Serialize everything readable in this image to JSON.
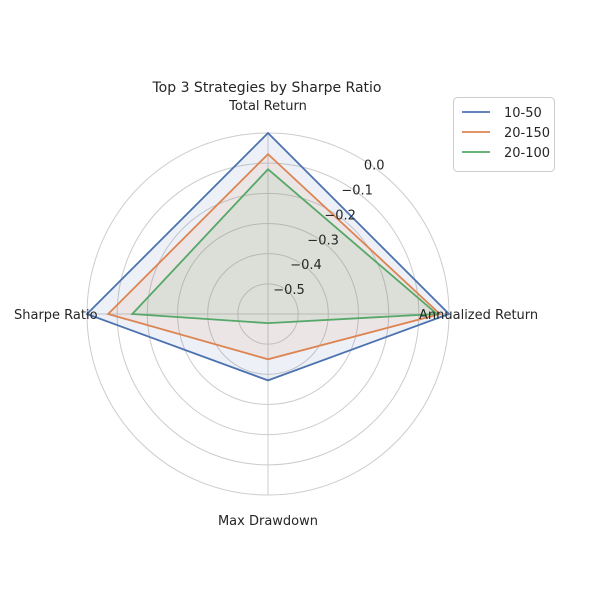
{
  "chart_data": {
    "type": "radar",
    "title": "Top 3 Strategies by Sharpe Ratio",
    "axes": [
      "Total Return",
      "Annualized Return",
      "Max Drawdown",
      "Sharpe Ratio"
    ],
    "r_ticks": [
      0.0,
      -0.1,
      -0.2,
      -0.3,
      -0.4,
      -0.5
    ],
    "r_tick_labels": [
      "0.0",
      "−0.1",
      "−0.2",
      "−0.3",
      "−0.4",
      "−0.5"
    ],
    "r_range": [
      -0.6,
      0.0
    ],
    "grid": true,
    "legend_position": "top-right",
    "series": [
      {
        "name": "10-50",
        "color": "#4c72b0",
        "values": [
          0.0,
          0.0,
          -0.38,
          0.0
        ]
      },
      {
        "name": "20-150",
        "color": "#dd8452",
        "values": [
          -0.07,
          -0.03,
          -0.45,
          -0.07
        ]
      },
      {
        "name": "20-100",
        "color": "#55a868",
        "values": [
          -0.12,
          -0.04,
          -0.57,
          -0.15
        ]
      }
    ]
  }
}
